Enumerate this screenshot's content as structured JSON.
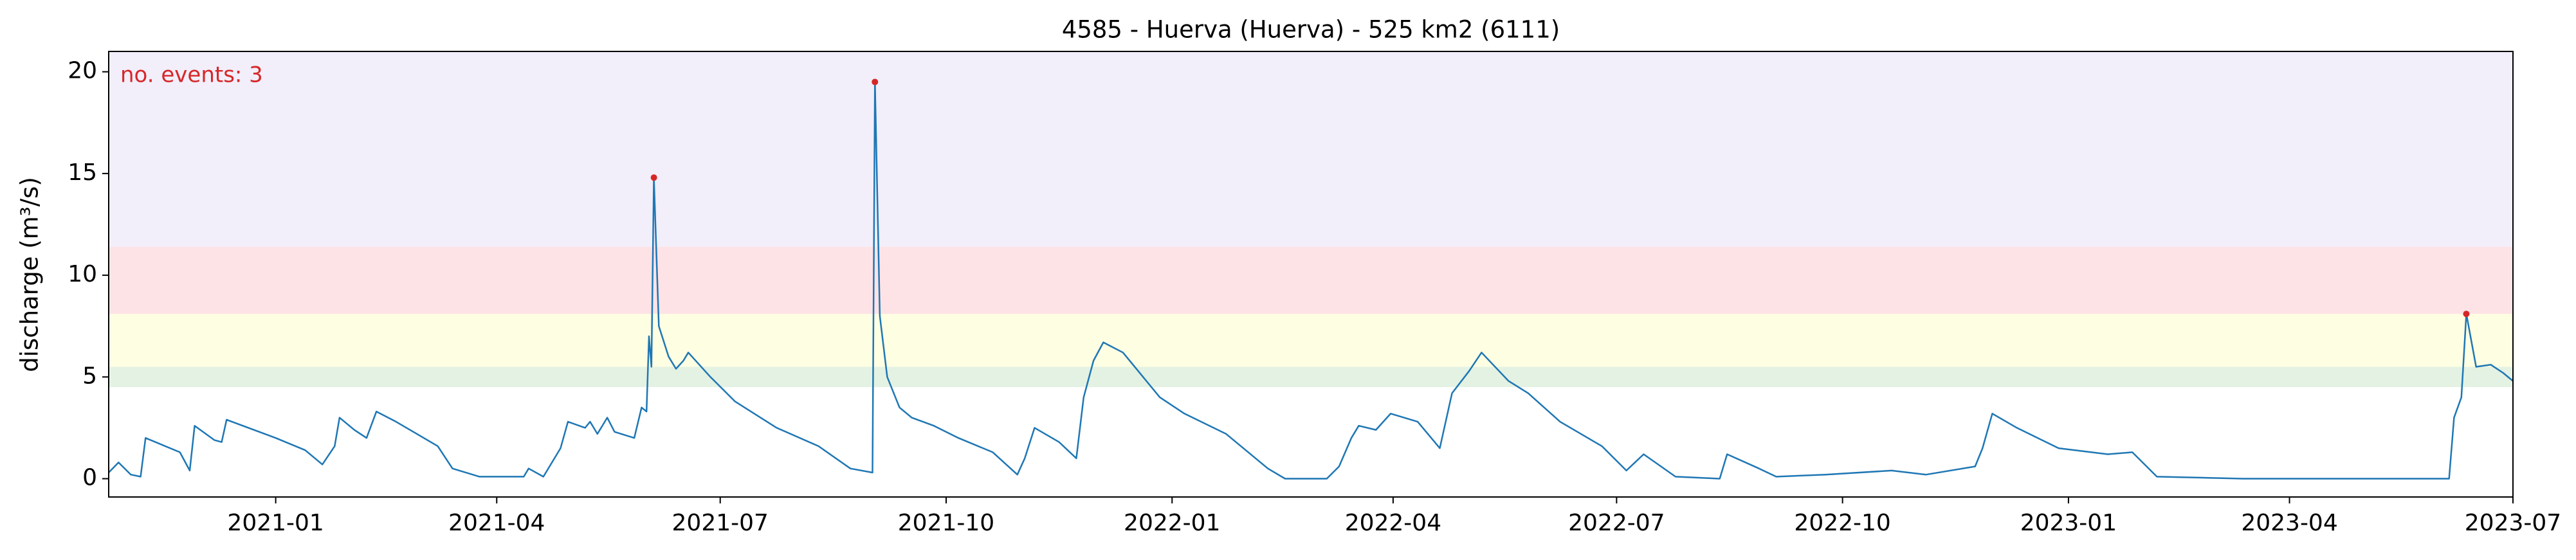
{
  "chart_data": {
    "type": "line",
    "title": "4585 - Huerva (Huerva) - 525 km2 (6111)",
    "y_label": "discharge (m³/s)",
    "annotation": "no. events: 3",
    "ylim": [
      -0.9,
      21
    ],
    "yticks": [
      0,
      5,
      10,
      15,
      20
    ],
    "xlim": [
      "2020-10-25",
      "2023-07-01"
    ],
    "xticks": [
      "2021-01",
      "2021-04",
      "2021-07",
      "2021-10",
      "2022-01",
      "2022-04",
      "2022-07",
      "2022-10",
      "2023-01",
      "2023-04",
      "2023-07"
    ],
    "bands": [
      {
        "from": 4.5,
        "to": 5.5,
        "color": "#e4f2e3"
      },
      {
        "from": 5.5,
        "to": 8.1,
        "color": "#fefee3"
      },
      {
        "from": 8.1,
        "to": 11.4,
        "color": "#fde3e6"
      },
      {
        "from": 11.4,
        "to": 21,
        "color": "#f2eefa"
      }
    ],
    "series": [
      {
        "color": "#1f77b4",
        "x": [
          "2020-10-25",
          "2020-10-29",
          "2020-11-03",
          "2020-11-07",
          "2020-11-09",
          "2020-11-23",
          "2020-11-27",
          "2020-11-29",
          "2020-12-07",
          "2020-12-10",
          "2020-12-12",
          "2021-01-01",
          "2021-01-13",
          "2021-01-20",
          "2021-01-25",
          "2021-01-27",
          "2021-02-02",
          "2021-02-07",
          "2021-02-11",
          "2021-02-19",
          "2021-03-08",
          "2021-03-14",
          "2021-03-25",
          "2021-04-12",
          "2021-04-14",
          "2021-04-20",
          "2021-04-27",
          "2021-04-30",
          "2021-05-07",
          "2021-05-09",
          "2021-05-12",
          "2021-05-16",
          "2021-05-19",
          "2021-05-27",
          "2021-05-30",
          "2021-06-01",
          "2021-06-02",
          "2021-06-03",
          "2021-06-04",
          "2021-06-06",
          "2021-06-10",
          "2021-06-13",
          "2021-06-16",
          "2021-06-18",
          "2021-06-27",
          "2021-07-07",
          "2021-07-24",
          "2021-08-10",
          "2021-08-23",
          "2021-09-01",
          "2021-09-02",
          "2021-09-04",
          "2021-09-07",
          "2021-09-12",
          "2021-09-17",
          "2021-09-26",
          "2021-10-06",
          "2021-10-20",
          "2021-10-30",
          "2021-11-02",
          "2021-11-06",
          "2021-11-16",
          "2021-11-23",
          "2021-11-26",
          "2021-11-30",
          "2021-12-04",
          "2021-12-12",
          "2021-12-27",
          "2022-01-06",
          "2022-01-23",
          "2022-02-09",
          "2022-02-16",
          "2022-03-05",
          "2022-03-10",
          "2022-03-15",
          "2022-03-18",
          "2022-03-25",
          "2022-03-31",
          "2022-04-11",
          "2022-04-20",
          "2022-04-25",
          "2022-05-02",
          "2022-05-07",
          "2022-05-18",
          "2022-05-26",
          "2022-06-08",
          "2022-06-25",
          "2022-07-05",
          "2022-07-12",
          "2022-07-25",
          "2022-08-12",
          "2022-08-15",
          "2022-08-28",
          "2022-09-04",
          "2022-09-24",
          "2022-10-21",
          "2022-11-04",
          "2022-11-24",
          "2022-11-27",
          "2022-12-01",
          "2022-12-11",
          "2022-12-28",
          "2023-01-17",
          "2023-01-27",
          "2023-02-06",
          "2023-03-13",
          "2023-04-16",
          "2023-06-05",
          "2023-06-07",
          "2023-06-10",
          "2023-06-12",
          "2023-06-16",
          "2023-06-22",
          "2023-06-27",
          "2023-07-01"
        ],
        "values": [
          0.3,
          0.8,
          0.2,
          0.1,
          2.0,
          1.3,
          0.4,
          2.6,
          1.9,
          1.8,
          2.9,
          2.0,
          1.4,
          0.7,
          1.6,
          3.0,
          2.4,
          2.0,
          3.3,
          2.8,
          1.6,
          0.5,
          0.1,
          0.1,
          0.5,
          0.1,
          1.5,
          2.8,
          2.5,
          2.8,
          2.2,
          3.0,
          2.3,
          2.0,
          3.5,
          3.3,
          7.0,
          5.5,
          14.8,
          7.5,
          6.0,
          5.4,
          5.8,
          6.2,
          5.0,
          3.8,
          2.5,
          1.6,
          0.5,
          0.3,
          19.5,
          8.0,
          5.0,
          3.5,
          3.0,
          2.6,
          2.0,
          1.3,
          0.2,
          1.0,
          2.5,
          1.8,
          1.0,
          4.0,
          5.8,
          6.7,
          6.2,
          4.0,
          3.2,
          2.2,
          0.5,
          0.0,
          0.0,
          0.6,
          2.0,
          2.6,
          2.4,
          3.2,
          2.8,
          1.5,
          4.2,
          5.3,
          6.2,
          4.8,
          4.2,
          2.8,
          1.6,
          0.4,
          1.2,
          0.1,
          0.0,
          1.2,
          0.5,
          0.1,
          0.2,
          0.4,
          0.2,
          0.6,
          1.5,
          3.2,
          2.5,
          1.5,
          1.2,
          1.3,
          0.1,
          0.0,
          0.0,
          0.0,
          3.0,
          4.0,
          8.1,
          5.5,
          5.6,
          5.2,
          4.8
        ]
      },
      {
        "color": "#d62728",
        "marker": "dot",
        "x": [
          "2021-06-04",
          "2021-09-02",
          "2023-06-12"
        ],
        "values": [
          14.8,
          19.5,
          8.1
        ]
      }
    ]
  }
}
